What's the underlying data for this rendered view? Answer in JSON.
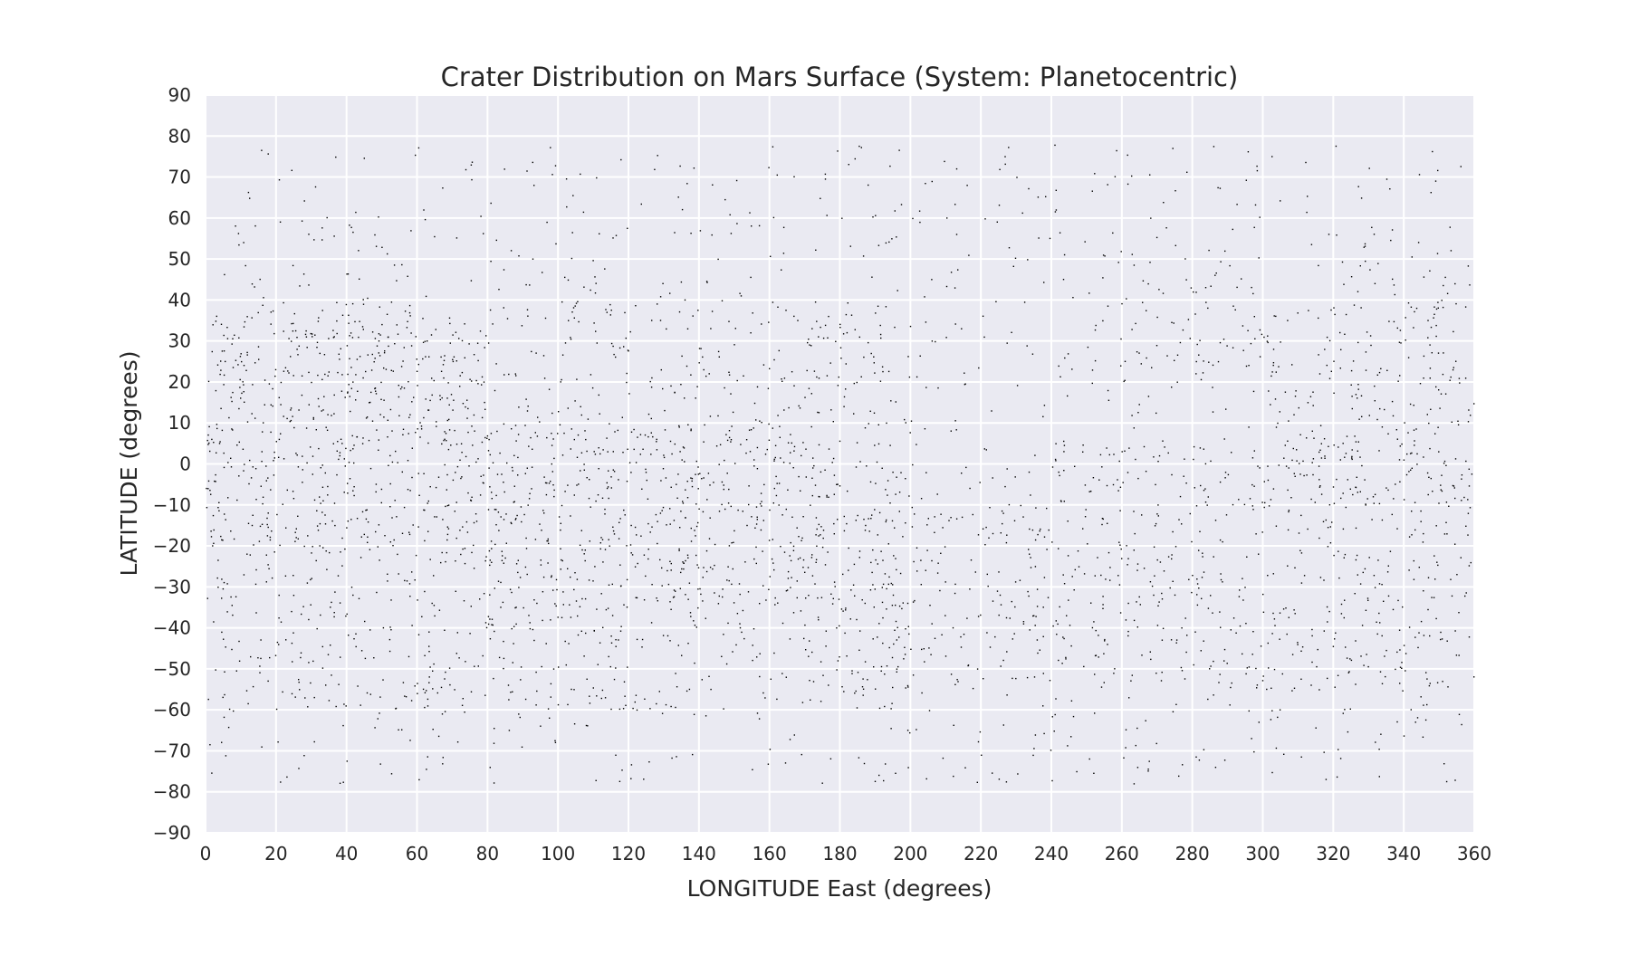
{
  "chart_data": {
    "type": "scatter",
    "title": "Crater Distribution on Mars Surface (System: Planetocentric)",
    "xlabel": "LONGITUDE East (degrees)",
    "ylabel": "LATITUDE (degrees)",
    "xlim": [
      0,
      360
    ],
    "ylim": [
      -90,
      90
    ],
    "xticks": [
      0,
      20,
      40,
      60,
      80,
      100,
      120,
      140,
      160,
      180,
      200,
      220,
      240,
      260,
      280,
      300,
      320,
      340,
      360
    ],
    "yticks": [
      90,
      80,
      70,
      60,
      50,
      40,
      30,
      20,
      10,
      0,
      -10,
      -20,
      -30,
      -40,
      -50,
      -60,
      -70,
      -80,
      -90
    ],
    "grid": true,
    "legend": "none",
    "colors": {
      "background": "#eaeaf2",
      "grid": "#ffffff",
      "points": "#000000"
    },
    "point_density_regions": [
      {
        "lon": [
          0,
          360
        ],
        "lat": [
          -78,
          78
        ],
        "density": 0.25
      },
      {
        "lon": [
          0,
          200
        ],
        "lat": [
          -60,
          40
        ],
        "density": 0.55
      },
      {
        "lon": [
          0,
          80
        ],
        "lat": [
          -20,
          35
        ],
        "density": 0.7
      },
      {
        "lon": [
          80,
          180
        ],
        "lat": [
          -35,
          10
        ],
        "density": 0.75
      },
      {
        "lon": [
          180,
          240
        ],
        "lat": [
          -55,
          -10
        ],
        "density": 0.6
      },
      {
        "lon": [
          240,
          360
        ],
        "lat": [
          -55,
          5
        ],
        "density": 0.55
      },
      {
        "lon": [
          300,
          360
        ],
        "lat": [
          -10,
          40
        ],
        "density": 0.75
      },
      {
        "lon": [
          260,
          300
        ],
        "lat": [
          20,
          50
        ],
        "density": 0.5
      },
      {
        "lon": [
          50,
          110
        ],
        "lat": [
          -70,
          -35
        ],
        "density": 0.15
      },
      {
        "lon": [
          290,
          345
        ],
        "lat": [
          -70,
          -35
        ],
        "density": 0.15
      },
      {
        "lon": [
          185,
          230
        ],
        "lat": [
          -25,
          45
        ],
        "density": 0.05
      },
      {
        "lon": [
          230,
          290
        ],
        "lat": [
          -10,
          25
        ],
        "density": 0.08
      },
      {
        "lon": [
          150,
          175
        ],
        "lat": [
          -5,
          10
        ],
        "density": 0.05
      }
    ]
  }
}
